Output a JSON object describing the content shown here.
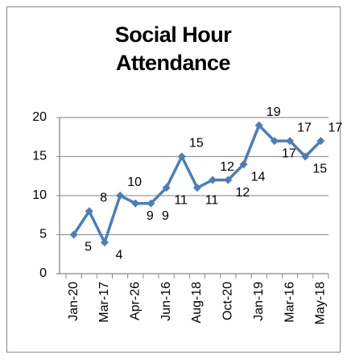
{
  "chart_data": {
    "type": "line",
    "title": "Social Hour Attendance",
    "categories": [
      "Jan-20",
      null,
      "Mar-17",
      null,
      "Apr-26",
      null,
      "Jun-16",
      null,
      "Aug-18",
      null,
      "Oct-20",
      null,
      "Jan-19",
      null,
      "Mar-16",
      null,
      "May-18"
    ],
    "series": [
      {
        "name": "Attendance",
        "color": "#4a7ebb",
        "values": [
          5,
          8,
          4,
          10,
          9,
          9,
          11,
          15,
          11,
          12,
          12,
          14,
          19,
          17,
          17,
          15,
          17
        ]
      }
    ],
    "ylim": [
      0,
      20
    ],
    "yticks": [
      0,
      5,
      10,
      15,
      20
    ],
    "grid": true
  }
}
